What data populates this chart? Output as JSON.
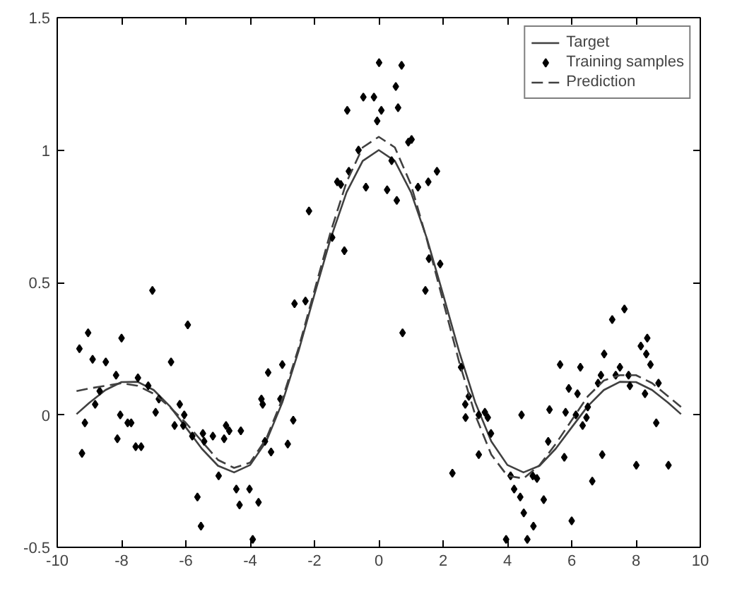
{
  "chart_data": {
    "type": "line",
    "xlim": [
      -10,
      10
    ],
    "ylim": [
      -0.5,
      1.5
    ],
    "xticks": [
      -10,
      -8,
      -6,
      -4,
      -2,
      0,
      2,
      4,
      6,
      8,
      10
    ],
    "yticks": [
      -0.5,
      0,
      0.5,
      1,
      1.5
    ],
    "grid": false,
    "legend": "top right",
    "series": [
      {
        "name": "Target",
        "color": "#404040",
        "line_style": "solid",
        "marker": "none",
        "x": [
          -9.4,
          -9,
          -8.5,
          -8,
          -7.5,
          -7,
          -6.5,
          -6,
          -5.5,
          -5,
          -4.5,
          -4,
          -3.5,
          -3,
          -2.5,
          -2,
          -1.5,
          -1,
          -0.5,
          0,
          0.5,
          1,
          1.5,
          2,
          2.5,
          3,
          3.5,
          4,
          4.5,
          5,
          5.5,
          6,
          6.5,
          7,
          7.5,
          8,
          8.5,
          9,
          9.4
        ],
        "values": [
          0.003,
          0.046,
          0.094,
          0.124,
          0.125,
          0.094,
          0.033,
          -0.047,
          -0.128,
          -0.192,
          -0.217,
          -0.189,
          -0.1,
          0.047,
          0.239,
          0.455,
          0.665,
          0.841,
          0.959,
          1,
          0.959,
          0.841,
          0.665,
          0.455,
          0.239,
          0.047,
          -0.1,
          -0.189,
          -0.217,
          -0.192,
          -0.128,
          -0.047,
          0.033,
          0.094,
          0.125,
          0.124,
          0.094,
          0.046,
          0.003
        ]
      },
      {
        "name": "Training samples",
        "type": "scatter",
        "color": "#000000",
        "marker": "diamond",
        "x": [
          -9.31,
          -9.04,
          -9.23,
          -9.14,
          -8.9,
          -8.82,
          -8.68,
          -8.49,
          -8.17,
          -8.13,
          -8.04,
          -8.0,
          -7.81,
          -7.7,
          -7.56,
          -7.39,
          -7.49,
          -7.17,
          -7.04,
          -6.94,
          -6.84,
          -6.46,
          -6.35,
          -6.19,
          -6.05,
          -6.08,
          -5.94,
          -5.8,
          -5.64,
          -5.53,
          -5.47,
          -5.43,
          -5.16,
          -4.98,
          -4.81,
          -4.75,
          -4.65,
          -4.43,
          -4.33,
          -4.29,
          -4.02,
          -3.92,
          -3.74,
          -3.65,
          -3.61,
          -3.54,
          -3.44,
          -3.35,
          -3.0,
          -3.06,
          -2.66,
          -2.83,
          -2.62,
          -2.28,
          0.74,
          1.45,
          2.56,
          2.8,
          2.69,
          2.7,
          2.29,
          0.01,
          0.71,
          0.53,
          -0.48,
          -0.15,
          -0.98,
          0.08,
          0.6,
          -0.05,
          0.92,
          1.02,
          -0.63,
          0.4,
          -0.93,
          -1.29,
          -1.18,
          -0.4,
          0.26,
          0.56,
          1.22,
          1.54,
          1.81,
          -2.17,
          -1.45,
          -1.07,
          1.56,
          1.91,
          3.11,
          3.3,
          3.39,
          3.49,
          3.11,
          4.1,
          4.21,
          4.4,
          4.51,
          4.81,
          4.62,
          3.96,
          4.44,
          4.79,
          4.92,
          5.13,
          5.27,
          5.31,
          5.64,
          5.77,
          5.81,
          5.91,
          6.0,
          6.18,
          6.13,
          6.27,
          6.34,
          6.46,
          6.5,
          6.64,
          6.82,
          6.91,
          6.95,
          7.01,
          7.26,
          7.37,
          7.5,
          7.64,
          7.77,
          7.81,
          8.01,
          8.15,
          8.28,
          8.32,
          8.35,
          8.45,
          8.63,
          8.7,
          9.01
        ],
        "values": [
          0.25,
          0.31,
          -0.145,
          -0.03,
          0.21,
          0.04,
          0.09,
          0.2,
          0.15,
          -0.09,
          0.0,
          0.29,
          -0.03,
          -0.03,
          -0.12,
          -0.12,
          0.14,
          0.11,
          0.47,
          0.01,
          0.06,
          0.2,
          -0.04,
          0.04,
          0.0,
          -0.04,
          0.34,
          -0.08,
          -0.31,
          -0.42,
          -0.07,
          -0.1,
          -0.08,
          -0.23,
          -0.09,
          -0.04,
          -0.06,
          -0.28,
          -0.34,
          -0.06,
          -0.28,
          -0.47,
          -0.33,
          0.06,
          0.04,
          -0.1,
          0.16,
          -0.14,
          0.19,
          0.06,
          -0.02,
          -0.11,
          0.42,
          0.43,
          0.31,
          0.47,
          0.18,
          0.07,
          0.04,
          -0.01,
          -0.22,
          1.33,
          1.32,
          1.24,
          1.2,
          1.2,
          1.15,
          1.15,
          1.16,
          1.11,
          1.03,
          1.04,
          1.0,
          0.96,
          0.92,
          0.88,
          0.87,
          0.86,
          0.85,
          0.81,
          0.86,
          0.88,
          0.92,
          0.77,
          0.67,
          0.62,
          0.59,
          0.57,
          0.0,
          0.01,
          -0.01,
          -0.07,
          -0.15,
          -0.23,
          -0.28,
          -0.31,
          -0.37,
          -0.42,
          -0.47,
          -0.47,
          0.0,
          -0.23,
          -0.24,
          -0.32,
          -0.1,
          0.02,
          0.19,
          -0.16,
          0.01,
          0.1,
          -0.4,
          0.08,
          0.0,
          0.18,
          -0.04,
          -0.01,
          0.03,
          -0.25,
          0.12,
          0.15,
          -0.15,
          0.23,
          0.36,
          0.15,
          0.18,
          0.4,
          0.15,
          0.11,
          -0.19,
          0.26,
          0.08,
          0.23,
          0.29,
          0.19,
          -0.03,
          0.12,
          -0.19
        ]
      },
      {
        "name": "Prediction",
        "color": "#404040",
        "line_style": "dashed",
        "marker": "none",
        "x": [
          -9.4,
          -9,
          -8.5,
          -8,
          -7.5,
          -7,
          -6.5,
          -6,
          -5.5,
          -5,
          -4.5,
          -4,
          -3.5,
          -3,
          -2.5,
          -2,
          -1.5,
          -1,
          -0.5,
          0,
          0.5,
          1,
          1.5,
          2,
          2.5,
          3,
          3.5,
          4,
          4.5,
          5,
          5.5,
          6,
          6.5,
          7,
          7.5,
          8,
          8.5,
          9,
          9.4
        ],
        "values": [
          0.09,
          0.1,
          0.11,
          0.12,
          0.11,
          0.08,
          0.03,
          -0.03,
          -0.1,
          -0.17,
          -0.2,
          -0.18,
          -0.09,
          0.06,
          0.25,
          0.47,
          0.69,
          0.88,
          1.01,
          1.05,
          1.01,
          0.87,
          0.66,
          0.43,
          0.2,
          0.0,
          -0.15,
          -0.23,
          -0.24,
          -0.19,
          -0.11,
          -0.02,
          0.07,
          0.13,
          0.15,
          0.15,
          0.12,
          0.07,
          0.03
        ]
      }
    ]
  }
}
